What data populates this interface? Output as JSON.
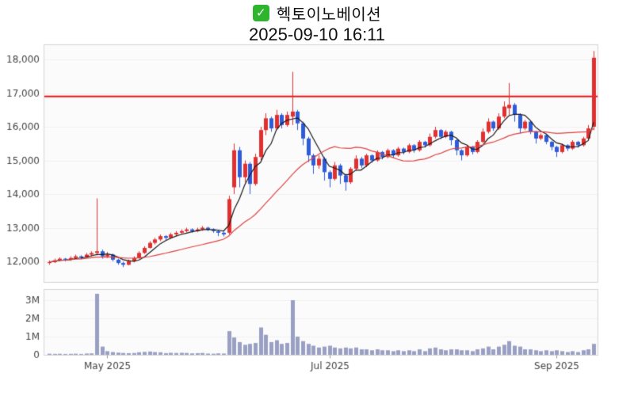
{
  "header": {
    "title": "헥토이노베이션",
    "subtitle": "2025-09-10 16:11",
    "check_glyph": "✓"
  },
  "colors": {
    "checkbox_green": "#2db52d",
    "up_candle": "#e03030",
    "down_candle": "#2e5bd7",
    "ma_fast": "#1a1a1a",
    "ma_slow": "#dd4444",
    "reference_line": "#ee1111",
    "volume_bar": "#9aa0c4",
    "panel_bg": "#fbfbfb",
    "panel_border": "#d4d4d4",
    "grid": "#f0f0f0",
    "axis_text": "#444444"
  },
  "chart_data": {
    "type": "candlestick+volume",
    "title": "헥토이노베이션",
    "timestamp": "2025-09-10 16:11",
    "grid": "faint-horizontal",
    "legend": "none",
    "reference_line": 16900,
    "y_axis": {
      "ticks": [
        {
          "value": 12000,
          "label": "12,000"
        },
        {
          "value": 13000,
          "label": "13,000"
        },
        {
          "value": 14000,
          "label": "14,000"
        },
        {
          "value": 15000,
          "label": "15,000"
        },
        {
          "value": 16000,
          "label": "16,000"
        },
        {
          "value": 17000,
          "label": "17,000"
        },
        {
          "value": 18000,
          "label": "18,000"
        }
      ]
    },
    "volume_axis": {
      "ticks": [
        {
          "value": 0,
          "label": "0"
        },
        {
          "value": 1000000,
          "label": "1M"
        },
        {
          "value": 2000000,
          "label": "2M"
        },
        {
          "value": 3000000,
          "label": "3M"
        }
      ]
    },
    "x_axis": {
      "ticks": [
        {
          "index": 11,
          "label": "May 2025"
        },
        {
          "index": 53,
          "label": "Jul 2025"
        },
        {
          "index": 96,
          "label": "Sep 2025"
        }
      ]
    },
    "overlays": [
      {
        "name": "short-term-ma",
        "period": 5,
        "color_key": "ma_fast"
      },
      {
        "name": "long-term-ma",
        "period": 20,
        "color_key": "ma_slow"
      }
    ],
    "ohlc": [
      [
        11950,
        12030,
        11900,
        11980
      ],
      [
        11980,
        12080,
        11950,
        12030
      ],
      [
        12030,
        12120,
        12000,
        12080
      ],
      [
        12080,
        12100,
        12000,
        12050
      ],
      [
        12050,
        12150,
        12020,
        12100
      ],
      [
        12100,
        12200,
        12070,
        12150
      ],
      [
        12150,
        12180,
        12060,
        12120
      ],
      [
        12120,
        12250,
        12100,
        12200
      ],
      [
        12200,
        12300,
        12150,
        12250
      ],
      [
        12250,
        13870,
        12180,
        12300
      ],
      [
        12300,
        12350,
        12080,
        12150
      ],
      [
        12150,
        12280,
        12100,
        12200
      ],
      [
        12200,
        12230,
        12000,
        12050
      ],
      [
        12050,
        12080,
        11900,
        11950
      ],
      [
        11950,
        11990,
        11830,
        11900
      ],
      [
        11900,
        12050,
        11880,
        12000
      ],
      [
        12000,
        12150,
        11970,
        12100
      ],
      [
        12100,
        12300,
        12080,
        12250
      ],
      [
        12250,
        12450,
        12220,
        12400
      ],
      [
        12400,
        12600,
        12380,
        12550
      ],
      [
        12550,
        12700,
        12500,
        12650
      ],
      [
        12650,
        12800,
        12600,
        12750
      ],
      [
        12750,
        12780,
        12640,
        12700
      ],
      [
        12700,
        12850,
        12670,
        12800
      ],
      [
        12800,
        12900,
        12750,
        12850
      ],
      [
        12850,
        12950,
        12800,
        12900
      ],
      [
        12900,
        13000,
        12860,
        12950
      ],
      [
        12950,
        12980,
        12850,
        12900
      ],
      [
        12900,
        13000,
        12870,
        12950
      ],
      [
        12950,
        13050,
        12910,
        13000
      ],
      [
        13000,
        13030,
        12900,
        12950
      ],
      [
        12950,
        12980,
        12850,
        12900
      ],
      [
        12900,
        12930,
        12750,
        12850
      ],
      [
        12850,
        12880,
        12740,
        12800
      ],
      [
        12850,
        13950,
        12800,
        13850
      ],
      [
        14200,
        15500,
        14000,
        15300
      ],
      [
        15300,
        15400,
        14200,
        14500
      ],
      [
        14500,
        15000,
        14350,
        14900
      ],
      [
        14900,
        14950,
        14000,
        14300
      ],
      [
        14300,
        15200,
        14250,
        15100
      ],
      [
        15100,
        16000,
        15000,
        15900
      ],
      [
        15900,
        16400,
        15750,
        16250
      ],
      [
        16250,
        16300,
        15850,
        15950
      ],
      [
        15950,
        16500,
        15900,
        16350
      ],
      [
        16350,
        16400,
        15950,
        16050
      ],
      [
        16050,
        16450,
        16000,
        16350
      ],
      [
        16300,
        17630,
        16050,
        16450
      ],
      [
        16450,
        16500,
        15900,
        16100
      ],
      [
        16100,
        16150,
        15450,
        15650
      ],
      [
        15650,
        15700,
        14950,
        15150
      ],
      [
        15150,
        15200,
        14600,
        14850
      ],
      [
        14850,
        15150,
        14750,
        15050
      ],
      [
        15050,
        15100,
        14400,
        14650
      ],
      [
        14650,
        14700,
        14200,
        14450
      ],
      [
        14450,
        14950,
        14400,
        14850
      ],
      [
        14850,
        14900,
        14300,
        14550
      ],
      [
        14550,
        14600,
        14100,
        14350
      ],
      [
        14350,
        14800,
        14300,
        14750
      ],
      [
        14750,
        15150,
        14700,
        15050
      ],
      [
        15050,
        15100,
        14780,
        14850
      ],
      [
        14850,
        15200,
        14800,
        15150
      ],
      [
        15150,
        15180,
        14930,
        15000
      ],
      [
        15000,
        15300,
        14960,
        15250
      ],
      [
        15250,
        15280,
        15030,
        15100
      ],
      [
        15100,
        15350,
        15060,
        15300
      ],
      [
        15300,
        15330,
        15080,
        15150
      ],
      [
        15150,
        15400,
        15110,
        15350
      ],
      [
        15350,
        15380,
        15180,
        15250
      ],
      [
        15250,
        15500,
        15210,
        15450
      ],
      [
        15450,
        15480,
        15230,
        15300
      ],
      [
        15300,
        15600,
        15260,
        15550
      ],
      [
        15550,
        15580,
        15380,
        15450
      ],
      [
        15450,
        15800,
        15410,
        15700
      ],
      [
        15700,
        16000,
        15650,
        15900
      ],
      [
        15900,
        15930,
        15630,
        15700
      ],
      [
        15700,
        15900,
        15660,
        15850
      ],
      [
        15850,
        15880,
        15450,
        15600
      ],
      [
        15600,
        15630,
        15150,
        15300
      ],
      [
        15300,
        15330,
        15000,
        15150
      ],
      [
        15150,
        15450,
        15110,
        15400
      ],
      [
        15400,
        15430,
        15180,
        15250
      ],
      [
        15250,
        15600,
        15210,
        15550
      ],
      [
        15550,
        15950,
        15510,
        15850
      ],
      [
        15850,
        16250,
        15800,
        16150
      ],
      [
        16150,
        16180,
        15880,
        15950
      ],
      [
        15950,
        16400,
        15910,
        16300
      ],
      [
        16300,
        16750,
        16250,
        16600
      ],
      [
        16550,
        17300,
        16350,
        16650
      ],
      [
        16650,
        16700,
        16150,
        16350
      ],
      [
        16350,
        16400,
        15800,
        15950
      ],
      [
        15950,
        16200,
        15900,
        16150
      ],
      [
        16150,
        16180,
        15780,
        15850
      ],
      [
        15850,
        15880,
        15500,
        15650
      ],
      [
        15650,
        15800,
        15600,
        15750
      ],
      [
        15750,
        15780,
        15480,
        15550
      ],
      [
        15550,
        15580,
        15300,
        15400
      ],
      [
        15400,
        15430,
        15100,
        15250
      ],
      [
        15250,
        15500,
        15210,
        15450
      ],
      [
        15450,
        15480,
        15280,
        15350
      ],
      [
        15350,
        15600,
        15310,
        15550
      ],
      [
        15550,
        15580,
        15380,
        15450
      ],
      [
        15450,
        15700,
        15410,
        15650
      ],
      [
        15650,
        16050,
        15600,
        15950
      ],
      [
        16000,
        18250,
        15900,
        18050
      ]
    ],
    "volumes": [
      60000,
      50000,
      55000,
      45000,
      50000,
      60000,
      45000,
      70000,
      80000,
      3350000,
      450000,
      200000,
      150000,
      120000,
      100000,
      90000,
      100000,
      140000,
      160000,
      180000,
      150000,
      140000,
      90000,
      110000,
      100000,
      110000,
      100000,
      80000,
      90000,
      100000,
      70000,
      60000,
      80000,
      70000,
      1300000,
      950000,
      700000,
      550000,
      600000,
      650000,
      1500000,
      1100000,
      700000,
      800000,
      600000,
      650000,
      3000000,
      1000000,
      750000,
      600000,
      500000,
      400000,
      450000,
      500000,
      400000,
      350000,
      400000,
      350000,
      400000,
      300000,
      300000,
      250000,
      300000,
      250000,
      250000,
      200000,
      250000,
      200000,
      250000,
      200000,
      300000,
      200000,
      350000,
      400000,
      300000,
      250000,
      300000,
      300000,
      250000,
      250000,
      200000,
      300000,
      350000,
      450000,
      300000,
      450000,
      550000,
      750000,
      500000,
      450000,
      300000,
      300000,
      250000,
      200000,
      250000,
      200000,
      250000,
      200000,
      150000,
      200000,
      150000,
      250000,
      300000,
      600000
    ]
  }
}
